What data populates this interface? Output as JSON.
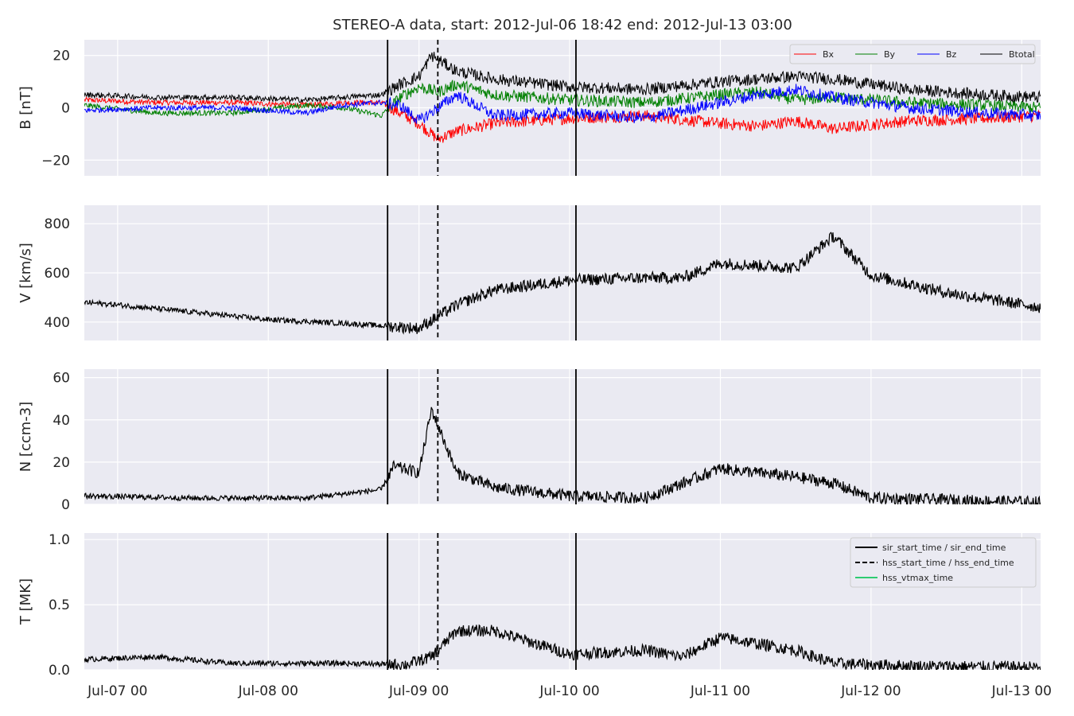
{
  "chart_data": [
    {
      "type": "line",
      "title": "STEREO-A data, start: 2012-Jul-06 18:42  end: 2012-Jul-13 03:00",
      "ylabel": "B [nT]",
      "ylim": [
        -26,
        26
      ],
      "yticks": [
        "20",
        "−20",
        "0"
      ],
      "ytick_values": [
        20,
        -20,
        0
      ],
      "legend": {
        "placement": "top-right",
        "entries": [
          "Bx",
          "By",
          "Bz",
          "Btotal"
        ]
      },
      "series": [
        {
          "name": "Bx",
          "color": "#ff0000",
          "x": [
            "2012-07-06 18:42",
            "2012-07-07 06:00",
            "2012-07-07 18:00",
            "2012-07-08 06:00",
            "2012-07-08 12:00",
            "2012-07-08 18:00",
            "2012-07-08 21:00",
            "2012-07-09 00:00",
            "2012-07-09 03:00",
            "2012-07-09 06:00",
            "2012-07-09 12:00",
            "2012-07-10 00:00",
            "2012-07-10 12:00",
            "2012-07-11 00:00",
            "2012-07-11 06:00",
            "2012-07-11 12:00",
            "2012-07-11 18:00",
            "2012-07-12 06:00",
            "2012-07-12 18:00",
            "2012-07-13 03:00"
          ],
          "y": [
            3,
            2,
            2,
            1,
            2,
            2,
            -2,
            -6,
            -12,
            -9,
            -6,
            -4,
            -3,
            -6,
            -7,
            -5,
            -8,
            -5,
            -4,
            -3
          ]
        },
        {
          "name": "By",
          "color": "#008000",
          "x": [
            "2012-07-06 18:42",
            "2012-07-07 06:00",
            "2012-07-07 18:00",
            "2012-07-08 06:00",
            "2012-07-08 12:00",
            "2012-07-08 18:00",
            "2012-07-08 21:00",
            "2012-07-09 00:00",
            "2012-07-09 03:00",
            "2012-07-09 06:00",
            "2012-07-09 12:00",
            "2012-07-10 00:00",
            "2012-07-10 12:00",
            "2012-07-11 00:00",
            "2012-07-11 06:00",
            "2012-07-11 12:00",
            "2012-07-11 18:00",
            "2012-07-12 06:00",
            "2012-07-12 18:00",
            "2012-07-13 03:00"
          ],
          "y": [
            1,
            -2,
            -2,
            1,
            0,
            -3,
            4,
            8,
            6,
            9,
            5,
            3,
            2,
            5,
            6,
            3,
            4,
            2,
            1,
            0
          ]
        },
        {
          "name": "Bz",
          "color": "#0000ff",
          "x": [
            "2012-07-06 18:42",
            "2012-07-07 06:00",
            "2012-07-07 18:00",
            "2012-07-08 06:00",
            "2012-07-08 12:00",
            "2012-07-08 18:00",
            "2012-07-08 21:00",
            "2012-07-09 00:00",
            "2012-07-09 03:00",
            "2012-07-09 06:00",
            "2012-07-09 12:00",
            "2012-07-10 00:00",
            "2012-07-10 12:00",
            "2012-07-11 00:00",
            "2012-07-11 06:00",
            "2012-07-11 12:00",
            "2012-07-11 18:00",
            "2012-07-12 06:00",
            "2012-07-12 18:00",
            "2012-07-13 03:00"
          ],
          "y": [
            -1,
            0,
            0,
            -2,
            1,
            2,
            1,
            -5,
            0,
            5,
            -3,
            -2,
            -4,
            2,
            5,
            7,
            4,
            0,
            -2,
            -3
          ]
        },
        {
          "name": "Btotal",
          "color": "#000000",
          "x": [
            "2012-07-06 18:42",
            "2012-07-07 06:00",
            "2012-07-07 18:00",
            "2012-07-08 06:00",
            "2012-07-08 12:00",
            "2012-07-08 18:00",
            "2012-07-08 21:00",
            "2012-07-09 00:00",
            "2012-07-09 02:00",
            "2012-07-09 06:00",
            "2012-07-09 12:00",
            "2012-07-10 00:00",
            "2012-07-10 12:00",
            "2012-07-11 00:00",
            "2012-07-11 06:00",
            "2012-07-11 12:00",
            "2012-07-11 18:00",
            "2012-07-12 06:00",
            "2012-07-12 18:00",
            "2012-07-13 03:00"
          ],
          "y": [
            5,
            4,
            4,
            3,
            4,
            5,
            9,
            12,
            20,
            14,
            11,
            8,
            7,
            10,
            11,
            12,
            11,
            7,
            5,
            4
          ]
        }
      ]
    },
    {
      "type": "line",
      "ylabel": "V [km/s]",
      "ylim": [
        325,
        875
      ],
      "yticks": [
        "800",
        "600",
        "400"
      ],
      "ytick_values": [
        800,
        600,
        400
      ],
      "series": [
        {
          "color": "#000000",
          "x": [
            "2012-07-06 18:42",
            "2012-07-07 00:00",
            "2012-07-07 12:00",
            "2012-07-08 00:00",
            "2012-07-08 12:00",
            "2012-07-08 18:00",
            "2012-07-09 00:00",
            "2012-07-09 06:00",
            "2012-07-09 12:00",
            "2012-07-10 00:00",
            "2012-07-10 12:00",
            "2012-07-10 18:00",
            "2012-07-11 00:00",
            "2012-07-11 12:00",
            "2012-07-11 18:00",
            "2012-07-12 00:00",
            "2012-07-12 12:00",
            "2012-07-13 03:00"
          ],
          "y": [
            480,
            470,
            440,
            410,
            395,
            385,
            375,
            470,
            530,
            570,
            580,
            580,
            640,
            620,
            750,
            590,
            520,
            460
          ]
        }
      ]
    },
    {
      "type": "line",
      "ylabel": "N [ccm-3]",
      "ylim": [
        0,
        64
      ],
      "yticks": [
        "60",
        "40",
        "20",
        "0"
      ],
      "ytick_values": [
        60,
        40,
        20,
        0
      ],
      "series": [
        {
          "color": "#000000",
          "x": [
            "2012-07-06 18:42",
            "2012-07-07 12:00",
            "2012-07-08 06:00",
            "2012-07-08 18:00",
            "2012-07-08 20:00",
            "2012-07-09 00:00",
            "2012-07-09 02:00",
            "2012-07-09 04:00",
            "2012-07-09 06:00",
            "2012-07-09 12:00",
            "2012-07-10 00:00",
            "2012-07-10 12:00",
            "2012-07-11 00:00",
            "2012-07-11 12:00",
            "2012-07-11 18:00",
            "2012-07-12 00:00",
            "2012-07-13 03:00"
          ],
          "y": [
            4,
            3,
            3,
            7,
            18,
            15,
            45,
            30,
            15,
            8,
            4,
            3,
            17,
            13,
            10,
            3,
            1
          ]
        }
      ]
    },
    {
      "type": "line",
      "ylabel": "T [MK]",
      "ylim": [
        0,
        1.05
      ],
      "yticks": [
        "1.0",
        "0.5",
        "0.0"
      ],
      "ytick_values": [
        1.0,
        0.5,
        0.0
      ],
      "legend": {
        "placement": "top-right",
        "entries": [
          "sir_start_time / sir_end_time",
          "hss_start_time / hss_end_time",
          "hss_vtmax_time"
        ]
      },
      "series": [
        {
          "color": "#000000",
          "x": [
            "2012-07-06 18:42",
            "2012-07-07 06:00",
            "2012-07-07 18:00",
            "2012-07-08 12:00",
            "2012-07-08 22:00",
            "2012-07-09 02:00",
            "2012-07-09 06:00",
            "2012-07-09 12:00",
            "2012-07-10 00:00",
            "2012-07-10 12:00",
            "2012-07-10 18:00",
            "2012-07-11 00:00",
            "2012-07-11 12:00",
            "2012-07-11 18:00",
            "2012-07-12 06:00",
            "2012-07-13 03:00"
          ],
          "y": [
            0.08,
            0.1,
            0.05,
            0.05,
            0.04,
            0.1,
            0.3,
            0.3,
            0.12,
            0.15,
            0.1,
            0.25,
            0.15,
            0.05,
            0.03,
            0.02
          ]
        }
      ]
    }
  ],
  "xaxis": {
    "range": [
      "2012-07-06 18:42",
      "2012-07-13 03:00"
    ],
    "ticks": [
      "Jul-07 00",
      "Jul-08 00",
      "Jul-09 00",
      "Jul-10 00",
      "Jul-11 00",
      "Jul-12 00",
      "Jul-13 00"
    ],
    "tick_values": [
      "2012-07-07 00:00",
      "2012-07-08 00:00",
      "2012-07-09 00:00",
      "2012-07-10 00:00",
      "2012-07-11 00:00",
      "2012-07-12 00:00",
      "2012-07-13 00:00"
    ]
  },
  "markers": {
    "sir_start_time": "2012-07-08 19:00",
    "hss_start_time": "2012-07-09 03:00",
    "sir_end_time": "2012-07-10 01:00"
  },
  "colors": {
    "panel_bg": "#eaeaf2",
    "grid": "#ffffff",
    "hss_vtmax": "#2ecc71"
  }
}
